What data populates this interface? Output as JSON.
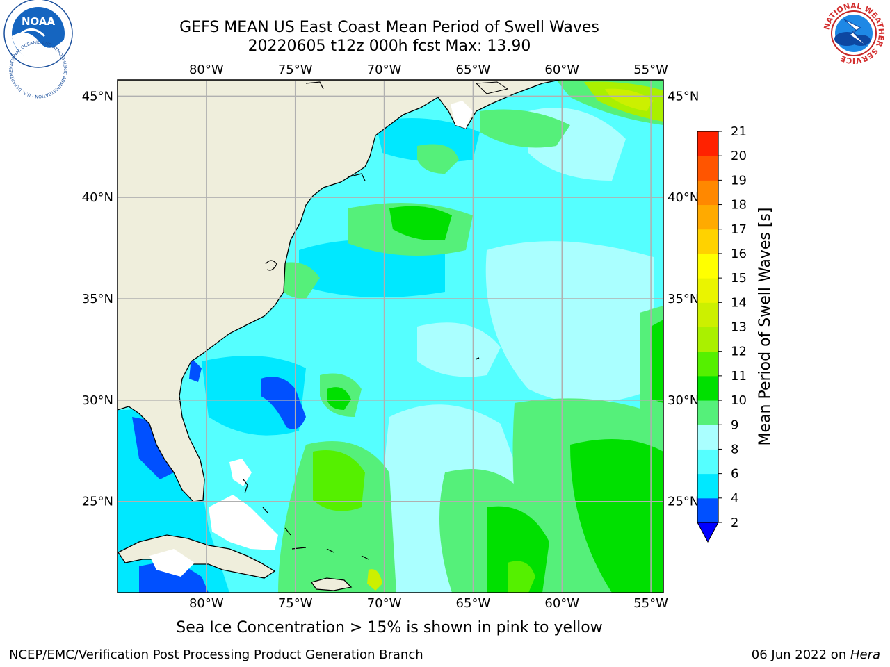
{
  "title": {
    "line1": "GEFS MEAN US East Coast Mean Period of Swell Waves",
    "line2": "20220605 t12z 000h fcst   Max: 13.90"
  },
  "logos": {
    "noaa_text": "NOAA",
    "noaa_ring": "NATIONAL OCEANIC AND ATMOSPHERIC ADMINISTRATION · U.S. DEPARTMENT OF COMMERCE",
    "nws_ring": "NATIONAL WEATHER SERVICE"
  },
  "map": {
    "lon_labels": [
      "80°W",
      "75°W",
      "70°W",
      "65°W",
      "60°W",
      "55°W"
    ],
    "lon_values": [
      -80,
      -75,
      -70,
      -65,
      -60,
      -55
    ],
    "lat_labels": [
      "45°N",
      "40°N",
      "35°N",
      "30°N",
      "25°N"
    ],
    "lat_values": [
      45,
      40,
      35,
      30,
      25
    ],
    "extent": {
      "lon_min": -85,
      "lon_max": -54.3,
      "lat_min": 20.5,
      "lat_max": 45.8
    },
    "colors": {
      "land": "#efeedc",
      "coast": "#000000",
      "grid": "#b0b0b0",
      "ice": "#ffffff"
    }
  },
  "colorbar": {
    "label": "Mean Period of Swell Waves [s]",
    "ticks": [
      "2",
      "4",
      "6",
      "8",
      "9",
      "10",
      "11",
      "12",
      "13",
      "14",
      "15",
      "16",
      "17",
      "18",
      "19",
      "20",
      "21"
    ],
    "colors": [
      "#0050ff",
      "#00e8ff",
      "#55ffff",
      "#aaffff",
      "#55f07a",
      "#00e000",
      "#55f000",
      "#aaf000",
      "#ccf000",
      "#eaf400",
      "#ffff00",
      "#ffd200",
      "#ffaa00",
      "#ff8800",
      "#ff5500",
      "#ff2200"
    ],
    "extend_color": "#0000ff"
  },
  "caption": "Sea Ice Concentration > 15% is shown in pink to yellow",
  "credit": "NCEP/EMC/Verification Post Processing Product Generation Branch",
  "date": {
    "text": "06 Jun 2022 on ",
    "host": "Hera"
  }
}
